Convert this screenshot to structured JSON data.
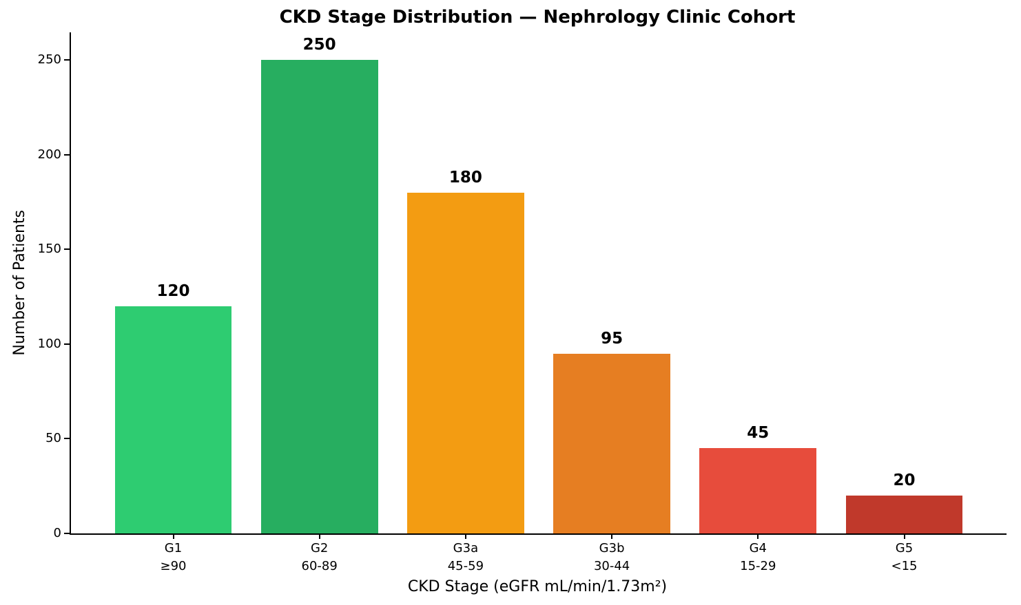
{
  "chart_data": {
    "type": "bar",
    "title": "CKD Stage Distribution — Nephrology Clinic Cohort",
    "xlabel": "CKD Stage (eGFR mL/min/1.73m²)",
    "ylabel": "Number of Patients",
    "categories": [
      "G1",
      "G2",
      "G3a",
      "G3b",
      "G4",
      "G5"
    ],
    "egfr_ranges": [
      "≥90",
      "60-89",
      "45-59",
      "30-44",
      "15-29",
      "<15"
    ],
    "values": [
      120,
      250,
      180,
      95,
      45,
      20
    ],
    "colors": [
      "#2ecc71",
      "#27ae60",
      "#f39c12",
      "#e67e22",
      "#e74c3c",
      "#c0392b"
    ],
    "yticks": [
      0,
      50,
      100,
      150,
      200,
      250
    ],
    "ylim": [
      0,
      264.5
    ],
    "xlim": [
      -0.7,
      5.7
    ],
    "bar_width": 0.8,
    "grid": false,
    "legend": "none",
    "axis_color": "#000000",
    "text_color": "#000000",
    "background_color": "#ffffff"
  }
}
